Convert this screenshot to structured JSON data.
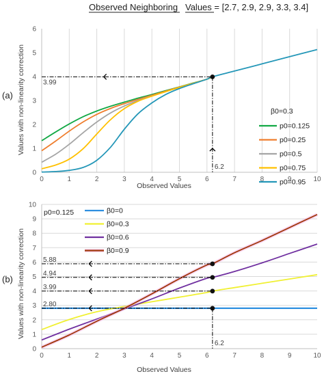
{
  "header": {
    "left": "Observed Neighboring",
    "right": "Values = [2.7, 2.9, 2.9, 3.3, 3.4]"
  },
  "chart_data": [
    {
      "panel_label": "(a)",
      "type": "line",
      "xlabel": "Observed Values",
      "ylabel": "Values with non-linearity correction",
      "xlim": [
        0,
        10
      ],
      "ylim": [
        0,
        6
      ],
      "xticks": [
        "0",
        "1",
        "2",
        "3",
        "4",
        "5",
        "6",
        "7",
        "8",
        "9",
        "10"
      ],
      "yticks": [
        "0",
        "1",
        "2",
        "3",
        "4",
        "5",
        "6"
      ],
      "grid": "vertical",
      "legend_title": "β0=0.3",
      "legend_position": "right",
      "series": [
        {
          "name": "p0=0.125",
          "color": "#12a844",
          "x": [
            0,
            0.5,
            1,
            1.5,
            2,
            2.5,
            3,
            3.5,
            4,
            4.5,
            5,
            5.5,
            6,
            6.2
          ],
          "y": [
            1.32,
            1.68,
            2.02,
            2.32,
            2.56,
            2.76,
            2.93,
            3.1,
            3.25,
            3.41,
            3.57,
            3.73,
            3.89,
            3.99
          ]
        },
        {
          "name": "p0=0.25",
          "color": "#ef7d2d",
          "x": [
            0,
            0.5,
            1,
            1.5,
            2,
            2.5,
            3,
            3.5,
            4,
            4.5,
            5,
            5.5,
            6,
            6.2
          ],
          "y": [
            0.9,
            1.3,
            1.72,
            2.1,
            2.42,
            2.67,
            2.87,
            3.05,
            3.22,
            3.39,
            3.56,
            3.72,
            3.89,
            3.99
          ]
        },
        {
          "name": "p0=0.5",
          "color": "#a5a5a5",
          "x": [
            0,
            0.5,
            1,
            1.5,
            2,
            2.5,
            3,
            3.5,
            4,
            4.5,
            5,
            5.5,
            6,
            6.2
          ],
          "y": [
            0.42,
            0.75,
            1.17,
            1.65,
            2.1,
            2.48,
            2.77,
            3.0,
            3.19,
            3.37,
            3.55,
            3.72,
            3.89,
            3.99
          ]
        },
        {
          "name": "p0=0.75",
          "color": "#ffc000",
          "x": [
            0,
            0.5,
            1,
            1.5,
            2,
            2.5,
            3,
            3.5,
            4,
            4.5,
            5,
            5.5,
            6,
            6.2
          ],
          "y": [
            0.15,
            0.3,
            0.55,
            0.98,
            1.6,
            2.2,
            2.66,
            2.97,
            3.18,
            3.37,
            3.55,
            3.72,
            3.89,
            3.99
          ]
        },
        {
          "name": "p0=0.95",
          "color": "#2497b8",
          "x": [
            0,
            0.5,
            1,
            1.5,
            2,
            2.5,
            3,
            3.5,
            4,
            4.5,
            5,
            5.5,
            6,
            6.2,
            7,
            8,
            9,
            10
          ],
          "y": [
            0.01,
            0.03,
            0.08,
            0.2,
            0.5,
            1.05,
            1.8,
            2.45,
            2.9,
            3.25,
            3.5,
            3.7,
            3.89,
            3.99,
            4.23,
            4.53,
            4.83,
            5.13
          ]
        }
      ],
      "annotations": [
        {
          "x": 6.2,
          "y": 3.99,
          "y_label": "3.99",
          "x_label": "6.2"
        }
      ]
    },
    {
      "panel_label": "(b)",
      "type": "line",
      "xlabel": "Observed Values",
      "ylabel": "Values with non-linearity correction",
      "xlim": [
        0,
        10
      ],
      "ylim": [
        0,
        10
      ],
      "xticks": [
        "0",
        "1",
        "2",
        "3",
        "4",
        "5",
        "6",
        "7",
        "8",
        "9",
        "10"
      ],
      "yticks": [
        "0",
        "1",
        "2",
        "3",
        "4",
        "5",
        "6",
        "7",
        "8",
        "9",
        "10"
      ],
      "grid": "horizontal",
      "note": "p0=0.125",
      "legend_position": "top-left",
      "series": [
        {
          "name": "β0=0",
          "color": "#2e8fe0",
          "x": [
            0,
            10
          ],
          "y": [
            2.8,
            2.8
          ]
        },
        {
          "name": "β0=0.3",
          "color": "#f0f032",
          "x": [
            0,
            1,
            2,
            3,
            4,
            5,
            6,
            6.2,
            7,
            8,
            9,
            10
          ],
          "y": [
            1.32,
            2.02,
            2.56,
            2.93,
            3.25,
            3.57,
            3.89,
            3.99,
            4.23,
            4.53,
            4.83,
            5.13
          ]
        },
        {
          "name": "β0=0.6",
          "color": "#7030a0",
          "x": [
            0,
            1,
            2,
            3,
            4,
            5,
            6,
            6.2,
            7,
            8,
            9,
            10
          ],
          "y": [
            0.6,
            1.35,
            2.05,
            2.75,
            3.45,
            4.2,
            4.88,
            4.94,
            5.35,
            5.95,
            6.6,
            7.25
          ]
        },
        {
          "name": "β0=0.9",
          "color": "#a0380c",
          "x": [
            0,
            1,
            2,
            3,
            4,
            5,
            6,
            6.2,
            7,
            8,
            9,
            10
          ],
          "y": [
            0.1,
            0.95,
            1.9,
            2.8,
            3.8,
            4.85,
            5.8,
            5.88,
            6.65,
            7.5,
            8.4,
            9.3
          ]
        }
      ],
      "annotations": [
        {
          "x": 6.2,
          "y": 5.88,
          "y_label": "5.88"
        },
        {
          "x": 6.2,
          "y": 4.94,
          "y_label": "4.94"
        },
        {
          "x": 6.2,
          "y": 3.99,
          "y_label": "3.99"
        },
        {
          "x": 6.2,
          "y": 2.8,
          "y_label": "2.80",
          "x_label": "6.2"
        }
      ]
    }
  ]
}
